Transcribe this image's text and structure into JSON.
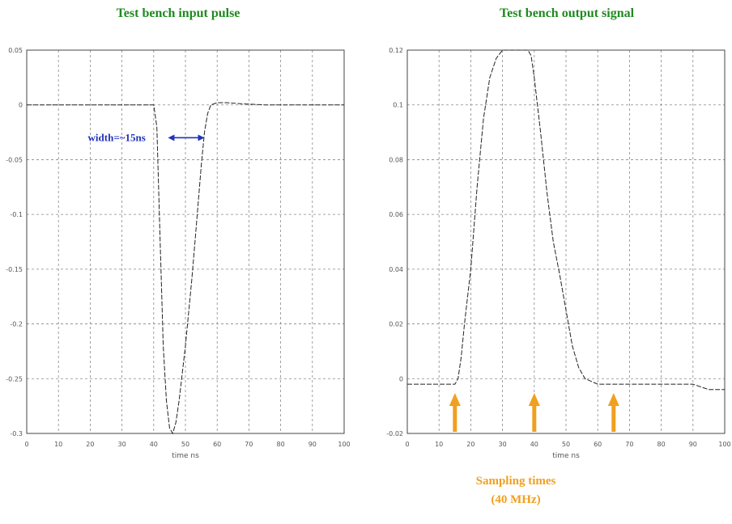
{
  "chart_data": [
    {
      "type": "line",
      "title": "Test bench input pulse",
      "xlabel": "time ns",
      "ylabel": "",
      "xlim": [
        0,
        100
      ],
      "ylim": [
        -0.3,
        0.05
      ],
      "xticks": [
        0,
        10,
        20,
        30,
        40,
        50,
        60,
        70,
        80,
        90,
        100
      ],
      "xtick_labels": [
        "0",
        "10",
        "20",
        "30",
        "40",
        "50",
        "60",
        "70",
        "80",
        "90",
        "100"
      ],
      "yticks": [
        0.05,
        0,
        -0.05,
        -0.1,
        -0.15,
        -0.2,
        -0.25,
        -0.3
      ],
      "ytick_labels": [
        "0.05",
        "0",
        "-0.05",
        "-0.1",
        "-0.15",
        "-0.2",
        "-0.25",
        "-0.3"
      ],
      "grid": true,
      "series": [
        {
          "x": [
            0,
            40,
            41,
            42,
            43,
            44,
            45,
            46,
            47,
            48,
            49,
            50,
            51,
            52,
            53,
            54,
            55,
            56,
            57,
            58,
            60,
            63,
            68,
            75,
            80,
            90,
            100
          ],
          "y": [
            0,
            0,
            -0.02,
            -0.12,
            -0.22,
            -0.27,
            -0.295,
            -0.3,
            -0.29,
            -0.27,
            -0.245,
            -0.22,
            -0.19,
            -0.16,
            -0.125,
            -0.09,
            -0.055,
            -0.025,
            -0.008,
            0,
            0.002,
            0.002,
            0.001,
            0,
            0,
            0,
            0
          ]
        }
      ],
      "annotations": [
        {
          "text": "width=~15ns",
          "x": 40,
          "y": -0.03,
          "arrow_from": 44.5,
          "arrow_to": 56
        }
      ]
    },
    {
      "type": "line",
      "title": "Test bench output signal",
      "xlabel": "time ns",
      "ylabel": "",
      "xlim": [
        0,
        100
      ],
      "ylim": [
        -0.02,
        0.12
      ],
      "xticks": [
        0,
        10,
        20,
        30,
        40,
        50,
        60,
        70,
        80,
        90,
        100
      ],
      "xtick_labels": [
        "0",
        "10",
        "20",
        "30",
        "40",
        "50",
        "60",
        "70",
        "80",
        "90",
        "100"
      ],
      "yticks": [
        0.12,
        0.1,
        0.08,
        0.06,
        0.04,
        0.02,
        0,
        -0.02
      ],
      "ytick_labels": [
        "0.12",
        "0.1",
        "0.08",
        "0.06",
        "0.04",
        "0.02",
        "0",
        "-0.02"
      ],
      "grid": true,
      "series": [
        {
          "x": [
            0,
            10,
            15,
            16,
            17,
            18,
            20,
            22,
            24,
            26,
            28,
            30,
            32,
            34,
            36,
            38,
            39,
            40,
            42,
            44,
            46,
            48,
            50,
            52,
            54,
            56,
            60,
            70,
            80,
            85,
            90,
            95,
            100
          ],
          "y": [
            -0.002,
            -0.002,
            -0.002,
            0.0,
            0.008,
            0.02,
            0.04,
            0.07,
            0.095,
            0.11,
            0.117,
            0.12,
            0.12,
            0.12,
            0.12,
            0.12,
            0.118,
            0.11,
            0.09,
            0.068,
            0.05,
            0.038,
            0.025,
            0.012,
            0.004,
            0.0,
            -0.002,
            -0.002,
            -0.002,
            -0.002,
            -0.002,
            -0.004,
            -0.004
          ]
        }
      ],
      "sampling_times": [
        15,
        40,
        65
      ],
      "annotations": [
        {
          "text": "Sampling times",
          "x": 50,
          "y": -0.05
        },
        {
          "text": "(40 MHz)",
          "x": 50,
          "y": -0.06
        }
      ],
      "colors": {
        "sampling_arrow": "#f0a020"
      }
    }
  ]
}
